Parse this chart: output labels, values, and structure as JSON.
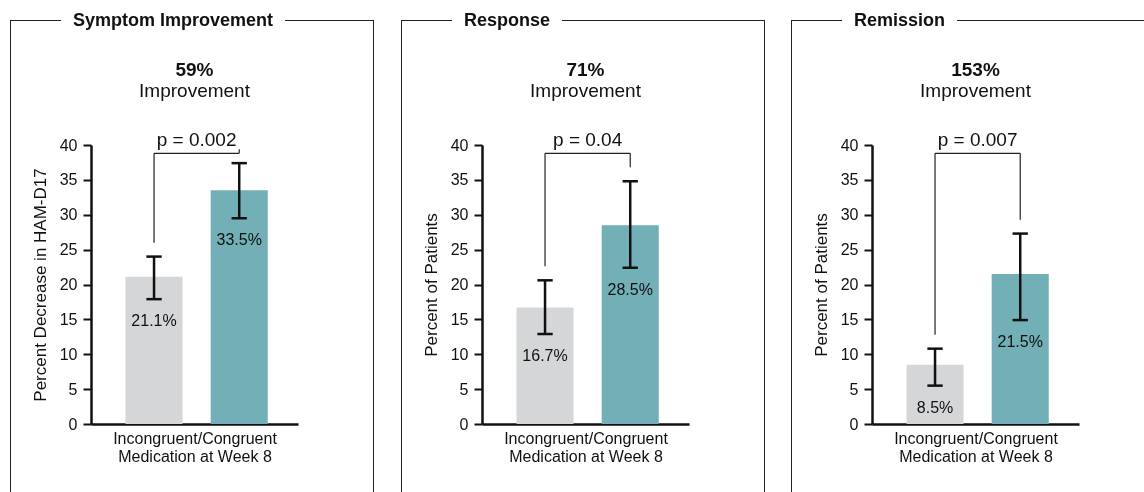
{
  "chart_data": [
    {
      "type": "bar",
      "title": "Symptom Improvement",
      "subtitle": "59% Improvement",
      "xlabel": "Incongruent/Congruent Medication at Week 8",
      "ylabel": "Percent Decrease in HAM-D17",
      "categories": [
        null,
        null
      ],
      "values": [
        21.1,
        33.5
      ],
      "colors": [
        "#d5d6d8",
        "#72afb6"
      ],
      "errors": [
        [
          17.9,
          24.0
        ],
        [
          29.5,
          37.4
        ]
      ],
      "value_labels": [
        "21.1%",
        "33.5%"
      ],
      "ylim": [
        0,
        40
      ],
      "yticks": [
        0,
        5,
        10,
        15,
        20,
        25,
        30,
        35,
        40
      ],
      "annotations": [
        "p = 0.002"
      ]
    },
    {
      "type": "bar",
      "title": "Response",
      "subtitle": "71% Improvement",
      "xlabel": "Incongruent/Congruent Medication at Week 8",
      "ylabel": "Percent of Patients",
      "categories": [
        null,
        null
      ],
      "values": [
        16.7,
        28.5
      ],
      "colors": [
        "#d5d6d8",
        "#72afb6"
      ],
      "errors": [
        [
          12.9,
          20.6
        ],
        [
          22.4,
          34.8
        ]
      ],
      "value_labels": [
        "16.7%",
        "28.5%"
      ],
      "ylim": [
        0,
        40
      ],
      "yticks": [
        0,
        5,
        10,
        15,
        20,
        25,
        30,
        35,
        40
      ],
      "annotations": [
        "p = 0.04"
      ]
    },
    {
      "type": "bar",
      "title": "Remission",
      "subtitle": "153% Improvement",
      "xlabel": "Incongruent/Congruent Medication at Week 8",
      "ylabel": "Percent of Patients",
      "categories": [
        null,
        null
      ],
      "values": [
        8.5,
        21.5
      ],
      "colors": [
        "#d5d6d8",
        "#72afb6"
      ],
      "errors": [
        [
          5.5,
          10.8
        ],
        [
          14.9,
          27.3
        ]
      ],
      "value_labels": [
        "8.5%",
        "21.5%"
      ],
      "ylim": [
        0,
        40
      ],
      "yticks": [
        0,
        5,
        10,
        15,
        20,
        25,
        30,
        35,
        40
      ],
      "annotations": [
        "p = 0.007"
      ]
    }
  ]
}
